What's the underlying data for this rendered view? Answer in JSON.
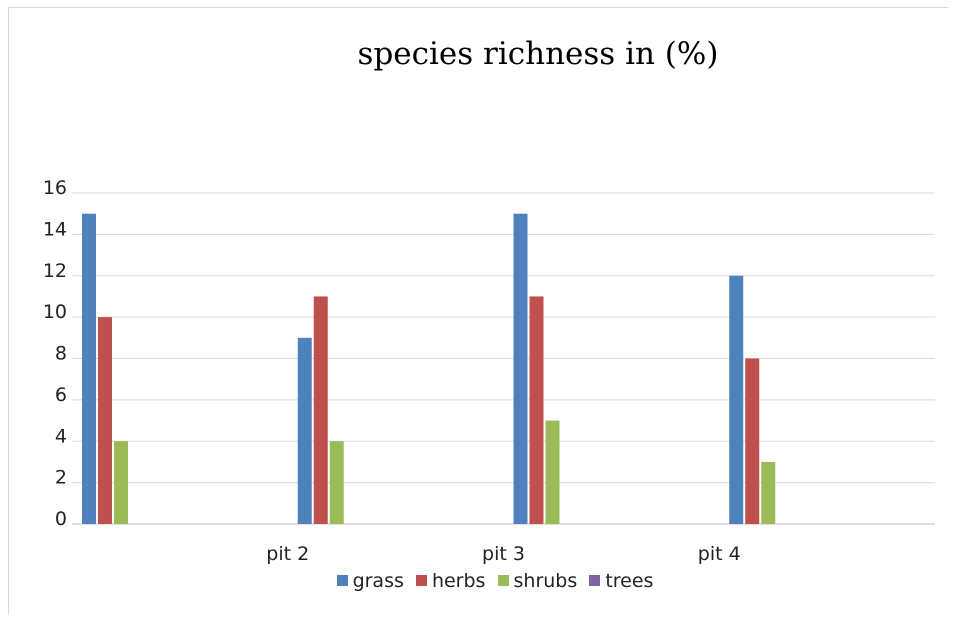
{
  "chart_data": {
    "type": "bar",
    "title": "species richness in (%)",
    "categories": [
      "",
      "pit 2",
      "pit 3",
      "pit 4"
    ],
    "series": [
      {
        "name": "grass",
        "color": "#4f81bd",
        "values": [
          15,
          9,
          15,
          12
        ]
      },
      {
        "name": "herbs",
        "color": "#c0504d",
        "values": [
          10,
          11,
          11,
          8
        ]
      },
      {
        "name": "shrubs",
        "color": "#9bbb59",
        "values": [
          4,
          4,
          5,
          3
        ]
      },
      {
        "name": "trees",
        "color": "#8064a2",
        "values": [
          0,
          0,
          0,
          0
        ]
      }
    ],
    "ylim": [
      0,
      16
    ],
    "yticks": [
      0,
      2,
      4,
      6,
      8,
      10,
      12,
      14,
      16
    ],
    "xlabel": "",
    "ylabel": "",
    "grid": true,
    "legend_position": "bottom"
  }
}
